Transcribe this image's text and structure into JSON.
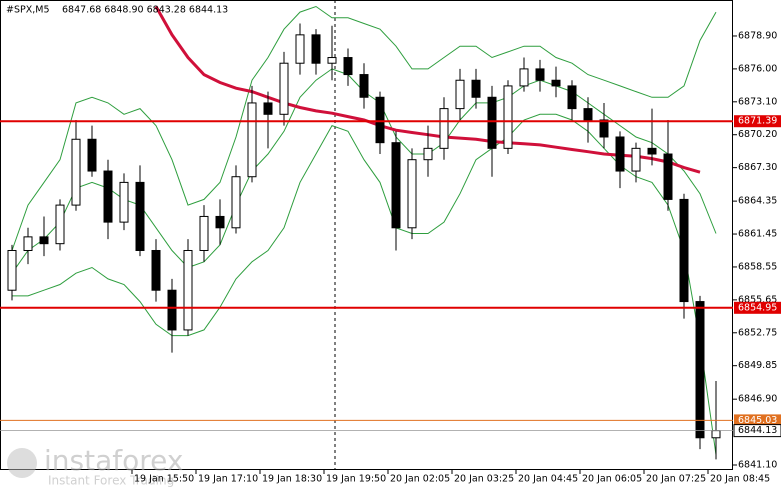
{
  "chart_data": {
    "type": "candlestick",
    "title": "#SPX,M5",
    "subtitle": "6847.68 6848.90 6843.28 6844.13",
    "categories": [
      null,
      null,
      null,
      null,
      null,
      null,
      null,
      null,
      "19 Jan 15:50",
      null,
      null,
      null,
      "19 Jan 17:10",
      null,
      null,
      null,
      "19 Jan 18:30",
      null,
      null,
      null,
      "19 Jan 19:50",
      null,
      null,
      null,
      "20 Jan 02:05",
      null,
      null,
      null,
      "20 Jan 03:25",
      null,
      null,
      null,
      "20 Jan 04:45",
      null,
      null,
      null,
      "20 Jan 06:05",
      null,
      null,
      null,
      "20 Jan 07:25",
      null,
      null,
      null,
      "20 Jan 08:45"
    ],
    "open": [
      6856.5,
      6860.0,
      6861.2,
      6860.6,
      6864.0,
      6869.8,
      6867.0,
      6862.5,
      6866.0,
      6860.0,
      6856.5,
      6853.0,
      6860.0,
      6863.0,
      6862.0,
      6866.5,
      6873.0,
      6872.0,
      6876.5,
      6879.0,
      6876.5,
      6877.0,
      6875.5,
      6873.5,
      6869.5,
      6862.0,
      6868.0,
      6869.0,
      6872.5,
      6875.0,
      6873.5,
      6869.0,
      6874.5,
      6876.0,
      6875.0,
      6874.5,
      6872.5,
      6871.5,
      6870.0,
      6867.0,
      6869.0,
      6868.5,
      6864.5,
      6855.5,
      6843.5
    ],
    "high": [
      6860.5,
      6862.0,
      6863.0,
      6864.5,
      6871.5,
      6871.0,
      6868.0,
      6866.8,
      6867.5,
      6861.0,
      6857.5,
      6861.0,
      6864.0,
      6864.5,
      6867.5,
      6874.5,
      6874.0,
      6877.5,
      6880.0,
      6879.5,
      6879.8,
      6877.8,
      6876.5,
      6874.0,
      6870.5,
      6869.0,
      6871.0,
      6873.5,
      6876.0,
      6876.0,
      6874.5,
      6875.0,
      6877.0,
      6876.8,
      6876.2,
      6875.0,
      6873.5,
      6873.0,
      6870.5,
      6869.5,
      6872.5,
      6871.5,
      6865.0,
      6856.0,
      6848.5
    ],
    "low": [
      6855.6,
      6858.8,
      6859.5,
      6860.0,
      6863.5,
      6866.5,
      6861.0,
      6861.8,
      6859.5,
      6855.5,
      6851.0,
      6852.5,
      6859.0,
      6860.5,
      6861.5,
      6866.0,
      6869.0,
      6871.0,
      6875.5,
      6875.5,
      6875.0,
      6874.5,
      6872.5,
      6868.5,
      6860.0,
      6861.0,
      6866.5,
      6868.0,
      6871.5,
      6872.5,
      6866.5,
      6868.5,
      6874.0,
      6874.0,
      6873.5,
      6871.5,
      6869.5,
      6869.0,
      6865.5,
      6866.0,
      6867.5,
      6863.5,
      6854.0,
      6842.5,
      6841.6
    ],
    "close": [
      6860.0,
      6861.2,
      6860.6,
      6864.0,
      6869.8,
      6867.0,
      6862.5,
      6866.0,
      6860.0,
      6856.5,
      6853.0,
      6860.0,
      6863.0,
      6862.0,
      6866.5,
      6873.0,
      6872.0,
      6876.5,
      6879.0,
      6876.5,
      6877.0,
      6875.5,
      6873.5,
      6869.5,
      6862.0,
      6868.0,
      6869.0,
      6872.5,
      6875.0,
      6873.5,
      6869.0,
      6874.5,
      6876.0,
      6875.0,
      6874.5,
      6872.5,
      6871.5,
      6870.0,
      6867.0,
      6869.0,
      6868.5,
      6864.5,
      6855.5,
      6843.5,
      6844.13
    ],
    "ylim": [
      6840.66,
      6882.07
    ],
    "yticks": [
      {
        "value": 6878.9,
        "label": "6878.90"
      },
      {
        "value": 6876,
        "label": "6876.00"
      },
      {
        "value": 6873.1,
        "label": "6873.10"
      },
      {
        "value": 6870.2,
        "label": "6870.20"
      },
      {
        "value": 6867.3,
        "label": "6867.30"
      },
      6864.35,
      6861.45,
      6858.55,
      6855.65,
      6852.75,
      6849.85,
      {
        "value": 6846.9,
        "label": "6846.90"
      },
      {
        "value": 6841.1,
        "label": "6841.10"
      }
    ],
    "series": [
      {
        "color": "#2e9e3e",
        "width": 1,
        "values": [
          6860,
          6864,
          6866,
          6868,
          6873,
          6873.5,
          6873,
          6872,
          6872.5,
          6871,
          6868,
          6864,
          6864.5,
          6866,
          6870,
          6875,
          6877,
          6879.5,
          6881,
          6881.5,
          6880.5,
          6880.5,
          6880,
          6879.5,
          6878,
          6876,
          6876,
          6877,
          6878,
          6878,
          6877,
          6877.5,
          6878,
          6878,
          6877,
          6876.5,
          6875.5,
          6875,
          6874.5,
          6874,
          6873.5,
          6873.5,
          6874.5,
          6878.5,
          6881
        ]
      },
      {
        "color": "#2e9e3e",
        "width": 1,
        "values": [
          6858,
          6860,
          6861,
          6862.5,
          6865.5,
          6866,
          6865.5,
          6864.5,
          6864,
          6862,
          6860,
          6858.5,
          6859,
          6860.5,
          6864,
          6867,
          6868.5,
          6870.5,
          6873.5,
          6875,
          6876,
          6875.5,
          6874,
          6873,
          6870,
          6868.5,
          6868.5,
          6869.5,
          6871.5,
          6873,
          6873,
          6873.5,
          6874.5,
          6875,
          6874.5,
          6874,
          6873,
          6872,
          6871,
          6870,
          6869.5,
          6868.5,
          6867,
          6865,
          6861.5
        ]
      },
      {
        "color": "#2e9e3e",
        "width": 1,
        "values": [
          6856,
          6856,
          6856.5,
          6857,
          6858,
          6858.5,
          6857.5,
          6857,
          6855.5,
          6853.5,
          6852.5,
          6852.5,
          6853,
          6855,
          6857.5,
          6859,
          6860,
          6862,
          6866,
          6868.5,
          6871,
          6870.5,
          6868,
          6866,
          6862,
          6861.5,
          6861.5,
          6862.5,
          6865,
          6868,
          6869,
          6870,
          6871.5,
          6872,
          6872,
          6871.5,
          6870.5,
          6869,
          6867.5,
          6866.5,
          6866,
          6864,
          6860,
          6852,
          6842
        ]
      },
      {
        "color": "#d0103a",
        "width": 3,
        "values": [
          null,
          null,
          null,
          null,
          null,
          null,
          null,
          null,
          null,
          6881.5,
          6879,
          6877,
          6875.5,
          6874.8,
          6874.3,
          6874,
          6873.5,
          6873,
          6872.6,
          6872.3,
          6872.1,
          6871.8,
          6871.5,
          6871.0,
          6870.6,
          6870.4,
          6870.2,
          6870.0,
          6869.9,
          6869.8,
          6869.6,
          6869.5,
          6869.4,
          6869.3,
          6869.1,
          6868.9,
          6868.7,
          6868.5,
          6868.4,
          6868.3,
          6868.1,
          6867.8,
          6867.3,
          6866.9,
          null
        ]
      }
    ],
    "levels": [
      {
        "value": 6871.39,
        "color": "#e00000"
      },
      {
        "value": 6854.95,
        "color": "#e00000"
      },
      {
        "value": 6845.03,
        "color": "#e07020"
      }
    ]
  },
  "watermark": {
    "brand": "instaforex",
    "tagline": "Instant Forex Trading"
  }
}
